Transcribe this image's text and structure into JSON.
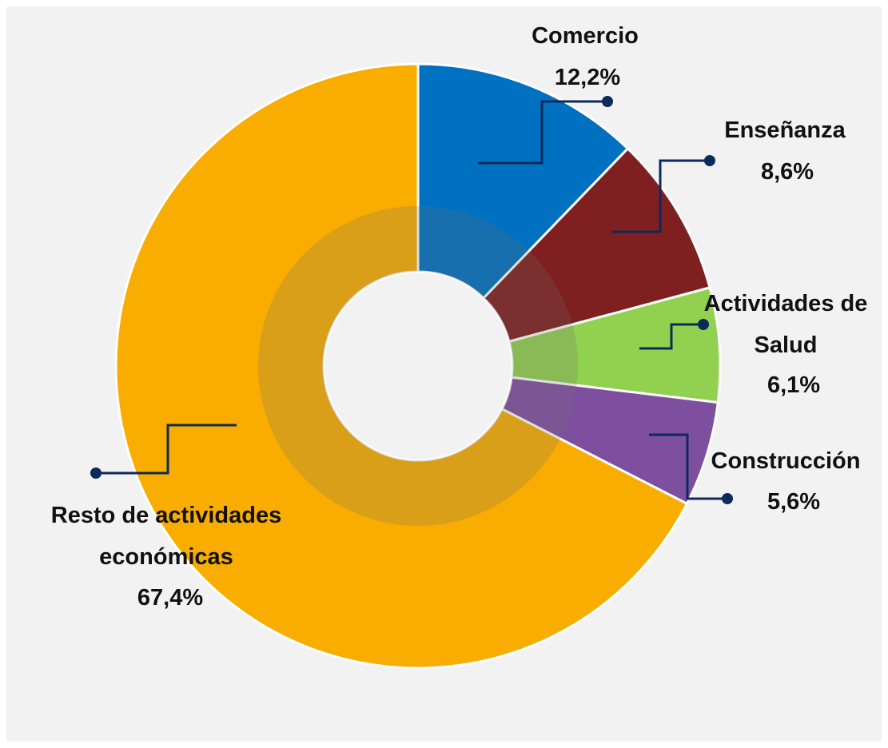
{
  "chart_data": {
    "type": "donut",
    "categories": [
      "Comercio",
      "Enseñanza",
      "Actividades de Salud",
      "Construcción",
      "Resto de actividades económicas"
    ],
    "values": [
      12.2,
      8.6,
      6.1,
      5.6,
      67.4
    ],
    "value_labels": [
      "12,2%",
      "8,6%",
      "6,1%",
      "5,6%",
      "67,4%"
    ],
    "colors": [
      "#0070c0",
      "#7f1f1f",
      "#92d050",
      "#7f4f9f",
      "#f8ad00"
    ]
  }
}
